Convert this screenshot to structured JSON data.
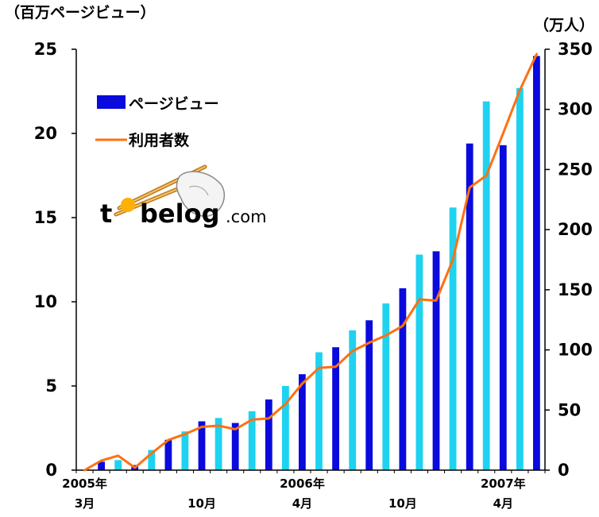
{
  "chart_data": {
    "type": "bar",
    "left_unit": "（百万ページビュー）",
    "right_unit": "（万人）",
    "y_left": {
      "min": 0,
      "max": 25,
      "ticks": [
        "0",
        "5",
        "10",
        "15",
        "20",
        "25"
      ]
    },
    "y_right": {
      "min": 0,
      "max": 350,
      "ticks": [
        "0",
        "50",
        "100",
        "150",
        "200",
        "250",
        "300",
        "350"
      ]
    },
    "x_tick_labels": [
      {
        "month_index": 0,
        "top": "2005年",
        "bottom": "3月"
      },
      {
        "month_index": 7,
        "top": "",
        "bottom": "10月"
      },
      {
        "month_index": 13,
        "top": "2006年",
        "bottom": "4月"
      },
      {
        "month_index": 19,
        "top": "",
        "bottom": "10月"
      },
      {
        "month_index": 25,
        "top": "2007年",
        "bottom": "4月"
      }
    ],
    "series": [
      {
        "name": "ページビュー",
        "kind": "bar",
        "axis": "left",
        "colors": [
          "#0a0adc",
          "#1ed2f0"
        ],
        "values": [
          0.5,
          0.6,
          0.3,
          1.2,
          1.8,
          2.3,
          2.9,
          3.1,
          2.8,
          3.5,
          4.2,
          5.0,
          5.7,
          7.0,
          7.3,
          8.3,
          8.9,
          9.9,
          10.8,
          12.8,
          13.0,
          15.6,
          19.4,
          21.9,
          19.3,
          22.7,
          24.6
        ]
      },
      {
        "name": "利用者数",
        "kind": "line",
        "axis": "right",
        "color": "#ff7010",
        "values": [
          0,
          8,
          12,
          2,
          14,
          25,
          30,
          36,
          37,
          34,
          42,
          43,
          55,
          72,
          85,
          86,
          99,
          106,
          112,
          120,
          142,
          141,
          175,
          235,
          245,
          280,
          316,
          346
        ]
      }
    ]
  },
  "logo": {
    "text_t": "t",
    "text_main": "belog",
    "text_com": ".com"
  }
}
